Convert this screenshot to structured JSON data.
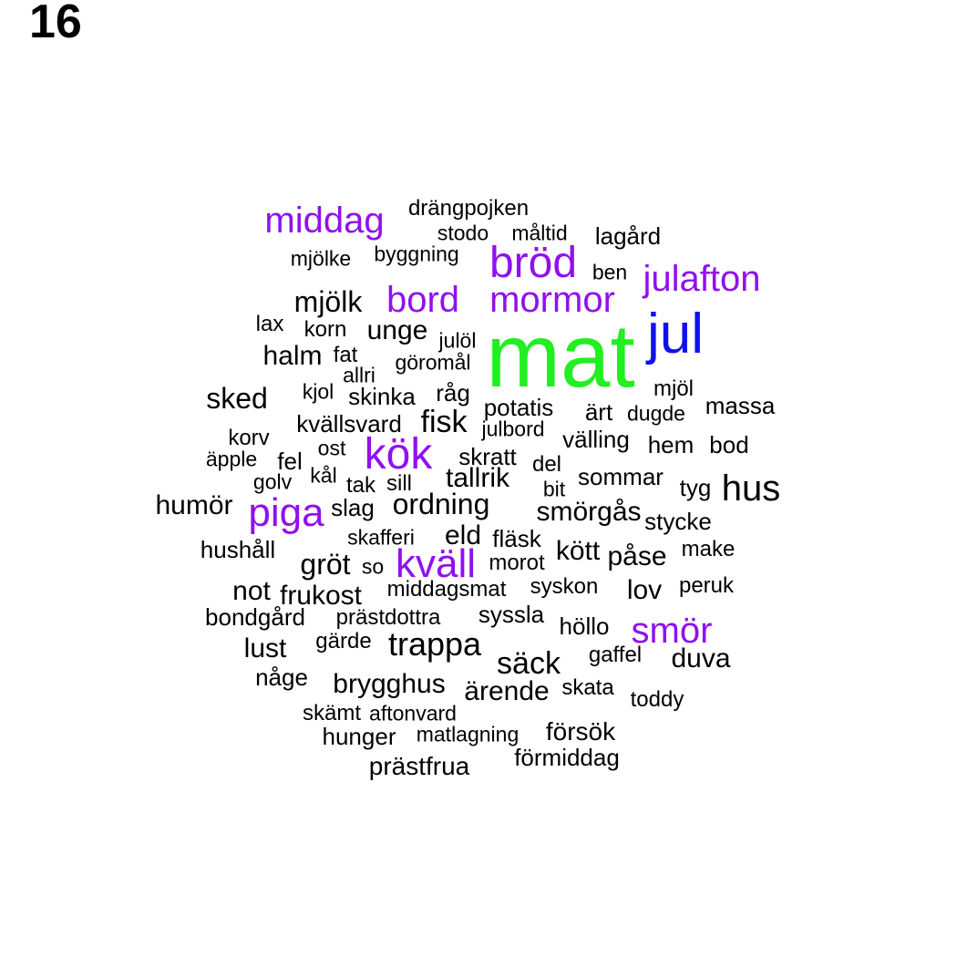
{
  "panel_label": "16",
  "colors": {
    "top": "#22ee22",
    "second": "#1010ee",
    "tier3": "#9010ee",
    "rest": "#000000"
  },
  "words": [
    {
      "text": "mat",
      "color": "#22ee22"
    },
    {
      "text": "jul",
      "color": "#1010ee"
    },
    {
      "text": "middag",
      "color": "#9010ee"
    },
    {
      "text": "bröd",
      "color": "#9010ee"
    },
    {
      "text": "julafton",
      "color": "#9010ee"
    },
    {
      "text": "bord",
      "color": "#9010ee"
    },
    {
      "text": "mormor",
      "color": "#9010ee"
    },
    {
      "text": "kök",
      "color": "#9010ee"
    },
    {
      "text": "piga",
      "color": "#9010ee"
    },
    {
      "text": "kväll",
      "color": "#9010ee"
    },
    {
      "text": "smör",
      "color": "#9010ee"
    },
    {
      "text": "drängpojken",
      "color": "#000000"
    },
    {
      "text": "stodo",
      "color": "#000000"
    },
    {
      "text": "måltid",
      "color": "#000000"
    },
    {
      "text": "lagård",
      "color": "#000000"
    },
    {
      "text": "mjölke",
      "color": "#000000"
    },
    {
      "text": "byggning",
      "color": "#000000"
    },
    {
      "text": "ben",
      "color": "#000000"
    },
    {
      "text": "mjölk",
      "color": "#000000"
    },
    {
      "text": "lax",
      "color": "#000000"
    },
    {
      "text": "korn",
      "color": "#000000"
    },
    {
      "text": "unge",
      "color": "#000000"
    },
    {
      "text": "julöl",
      "color": "#000000"
    },
    {
      "text": "halm",
      "color": "#000000"
    },
    {
      "text": "fat",
      "color": "#000000"
    },
    {
      "text": "göromål",
      "color": "#000000"
    },
    {
      "text": "allri",
      "color": "#000000"
    },
    {
      "text": "sked",
      "color": "#000000"
    },
    {
      "text": "kjol",
      "color": "#000000"
    },
    {
      "text": "skinka",
      "color": "#000000"
    },
    {
      "text": "råg",
      "color": "#000000"
    },
    {
      "text": "mjöl",
      "color": "#000000"
    },
    {
      "text": "potatis",
      "color": "#000000"
    },
    {
      "text": "ärt",
      "color": "#000000"
    },
    {
      "text": "dugde",
      "color": "#000000"
    },
    {
      "text": "massa",
      "color": "#000000"
    },
    {
      "text": "kvällsvard",
      "color": "#000000"
    },
    {
      "text": "fisk",
      "color": "#000000"
    },
    {
      "text": "julbord",
      "color": "#000000"
    },
    {
      "text": "korv",
      "color": "#000000"
    },
    {
      "text": "välling",
      "color": "#000000"
    },
    {
      "text": "hem",
      "color": "#000000"
    },
    {
      "text": "bod",
      "color": "#000000"
    },
    {
      "text": "ost",
      "color": "#000000"
    },
    {
      "text": "äpple",
      "color": "#000000"
    },
    {
      "text": "fel",
      "color": "#000000"
    },
    {
      "text": "skratt",
      "color": "#000000"
    },
    {
      "text": "del",
      "color": "#000000"
    },
    {
      "text": "kål",
      "color": "#000000"
    },
    {
      "text": "golv",
      "color": "#000000"
    },
    {
      "text": "tak",
      "color": "#000000"
    },
    {
      "text": "sill",
      "color": "#000000"
    },
    {
      "text": "tallrik",
      "color": "#000000"
    },
    {
      "text": "sommar",
      "color": "#000000"
    },
    {
      "text": "bit",
      "color": "#000000"
    },
    {
      "text": "tyg",
      "color": "#000000"
    },
    {
      "text": "hus",
      "color": "#000000"
    },
    {
      "text": "humör",
      "color": "#000000"
    },
    {
      "text": "slag",
      "color": "#000000"
    },
    {
      "text": "ordning",
      "color": "#000000"
    },
    {
      "text": "smörgås",
      "color": "#000000"
    },
    {
      "text": "stycke",
      "color": "#000000"
    },
    {
      "text": "skafferi",
      "color": "#000000"
    },
    {
      "text": "eld",
      "color": "#000000"
    },
    {
      "text": "fläsk",
      "color": "#000000"
    },
    {
      "text": "hushåll",
      "color": "#000000"
    },
    {
      "text": "kött",
      "color": "#000000"
    },
    {
      "text": "påse",
      "color": "#000000"
    },
    {
      "text": "make",
      "color": "#000000"
    },
    {
      "text": "gröt",
      "color": "#000000"
    },
    {
      "text": "so",
      "color": "#000000"
    },
    {
      "text": "morot",
      "color": "#000000"
    },
    {
      "text": "not",
      "color": "#000000"
    },
    {
      "text": "frukost",
      "color": "#000000"
    },
    {
      "text": "middagsmat",
      "color": "#000000"
    },
    {
      "text": "syskon",
      "color": "#000000"
    },
    {
      "text": "lov",
      "color": "#000000"
    },
    {
      "text": "peruk",
      "color": "#000000"
    },
    {
      "text": "bondgård",
      "color": "#000000"
    },
    {
      "text": "prästdottra",
      "color": "#000000"
    },
    {
      "text": "syssla",
      "color": "#000000"
    },
    {
      "text": "höllo",
      "color": "#000000"
    },
    {
      "text": "lust",
      "color": "#000000"
    },
    {
      "text": "gärde",
      "color": "#000000"
    },
    {
      "text": "trappa",
      "color": "#000000"
    },
    {
      "text": "gaffel",
      "color": "#000000"
    },
    {
      "text": "duva",
      "color": "#000000"
    },
    {
      "text": "säck",
      "color": "#000000"
    },
    {
      "text": "någe",
      "color": "#000000"
    },
    {
      "text": "brygghus",
      "color": "#000000"
    },
    {
      "text": "ärende",
      "color": "#000000"
    },
    {
      "text": "skata",
      "color": "#000000"
    },
    {
      "text": "toddy",
      "color": "#000000"
    },
    {
      "text": "skämt",
      "color": "#000000"
    },
    {
      "text": "aftonvard",
      "color": "#000000"
    },
    {
      "text": "försök",
      "color": "#000000"
    },
    {
      "text": "hunger",
      "color": "#000000"
    },
    {
      "text": "matlagning",
      "color": "#000000"
    },
    {
      "text": "förmiddag",
      "color": "#000000"
    },
    {
      "text": "prästfrua",
      "color": "#000000"
    }
  ]
}
